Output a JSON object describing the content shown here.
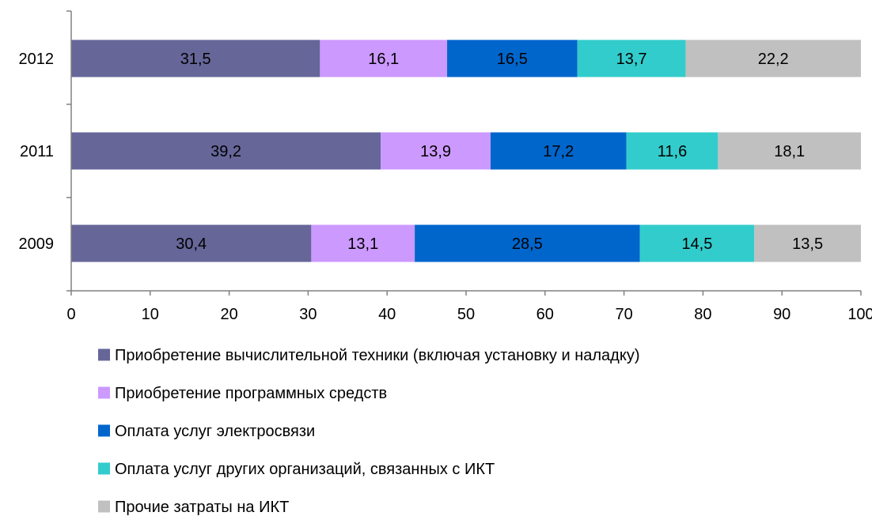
{
  "chart_data": {
    "type": "bar",
    "orientation": "horizontal",
    "stacked": true,
    "title": "",
    "xlabel": "",
    "ylabel": "",
    "xlim": [
      0,
      100
    ],
    "x_ticks": [
      0,
      10,
      20,
      30,
      40,
      50,
      60,
      70,
      80,
      90,
      100
    ],
    "grid": false,
    "legend_position": "bottom",
    "categories": [
      "2012",
      "2011",
      "2009"
    ],
    "series": [
      {
        "name": "Приобретение вычислительной техники (включая установку и наладку)",
        "color": "#666699",
        "values": [
          31.5,
          39.2,
          30.4
        ],
        "labels": [
          "31,5",
          "39,2",
          "30,4"
        ]
      },
      {
        "name": "Приобретение программных средств",
        "color": "#cc99ff",
        "values": [
          16.1,
          13.9,
          13.1
        ],
        "labels": [
          "16,1",
          "13,9",
          "13,1"
        ]
      },
      {
        "name": "Оплата услуг электросвязи",
        "color": "#0066cc",
        "values": [
          16.5,
          17.2,
          28.5
        ],
        "labels": [
          "16,5",
          "17,2",
          "28,5"
        ]
      },
      {
        "name": "Оплата услуг других организаций, связанных с ИКТ",
        "color": "#33cccc",
        "values": [
          13.7,
          11.6,
          14.5
        ],
        "labels": [
          "13,7",
          "11,6",
          "14,5"
        ]
      },
      {
        "name": "Прочие затраты на ИКТ",
        "color": "#c0c0c0",
        "values": [
          22.2,
          18.1,
          13.5
        ],
        "labels": [
          "22,2",
          "18,1",
          "13,5"
        ]
      }
    ]
  }
}
